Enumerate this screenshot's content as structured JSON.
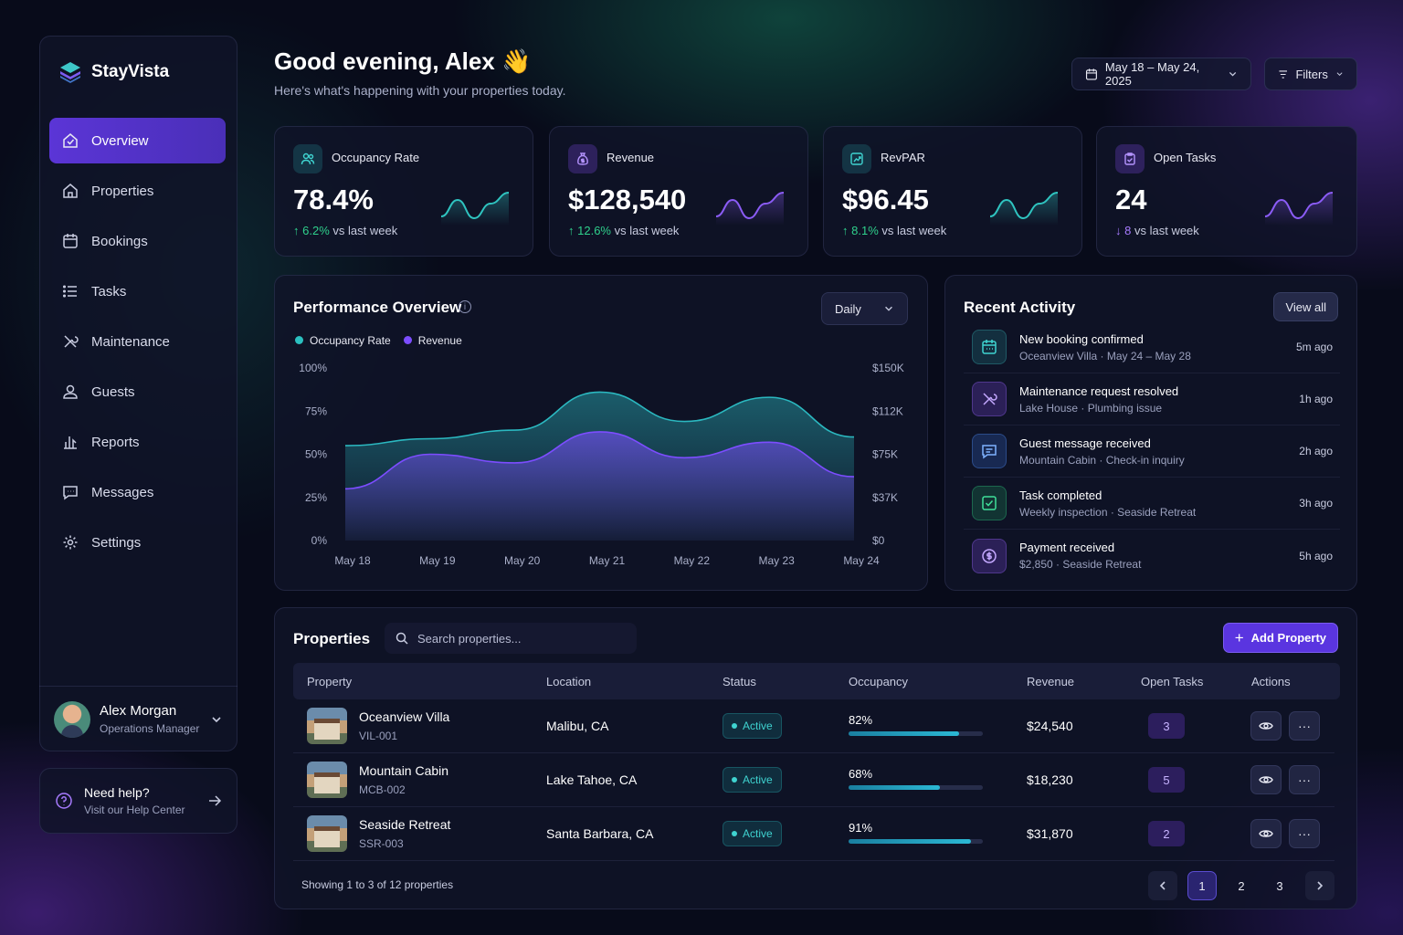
{
  "brand": {
    "name": "StayVista"
  },
  "sidebar": {
    "items": [
      {
        "label": "Overview",
        "icon": "home-check-icon",
        "active": true
      },
      {
        "label": "Properties",
        "icon": "house-icon"
      },
      {
        "label": "Bookings",
        "icon": "calendar-icon"
      },
      {
        "label": "Tasks",
        "icon": "list-icon"
      },
      {
        "label": "Maintenance",
        "icon": "tools-icon"
      },
      {
        "label": "Guests",
        "icon": "user-icon"
      },
      {
        "label": "Reports",
        "icon": "chart-icon"
      },
      {
        "label": "Messages",
        "icon": "message-icon"
      },
      {
        "label": "Settings",
        "icon": "gear-icon"
      }
    ]
  },
  "user": {
    "name": "Alex Morgan",
    "role": "Operations Manager"
  },
  "help": {
    "title": "Need help?",
    "subtitle": "Visit our Help Center"
  },
  "header": {
    "greeting": "Good evening, Alex 👋",
    "subtitle": "Here's what's happening with your properties today.",
    "date_range": "May 18 – May 24, 2025",
    "filters_label": "Filters"
  },
  "kpis": [
    {
      "label": "Occupancy Rate",
      "value": "78.4%",
      "delta": "6.2%",
      "direction": "up",
      "suffix": "vs last week",
      "color": "#2fc4c0"
    },
    {
      "label": "Revenue",
      "value": "$128,540",
      "delta": "12.6%",
      "direction": "up",
      "suffix": "vs last week",
      "color": "#8b5cf6"
    },
    {
      "label": "RevPAR",
      "value": "$96.45",
      "delta": "8.1%",
      "direction": "up",
      "suffix": "vs last week",
      "color": "#2fc4c0"
    },
    {
      "label": "Open Tasks",
      "value": "24",
      "delta": "8",
      "direction": "down",
      "suffix": "vs last week",
      "color": "#8b5cf6"
    }
  ],
  "performance": {
    "title": "Performance Overview",
    "period": "Daily",
    "chart_data": {
      "type": "area",
      "x": [
        "May 18",
        "May 19",
        "May 20",
        "May 21",
        "May 22",
        "May 23",
        "May 24"
      ],
      "y_left_ticks": [
        "100%",
        "75%",
        "50%",
        "25%",
        "0%"
      ],
      "y_right_ticks": [
        "$150K",
        "$112K",
        "$75K",
        "$37K",
        "$0"
      ],
      "ylim_left": [
        0,
        100
      ],
      "series": [
        {
          "name": "Occupancy Rate",
          "axis": "left",
          "color": "#2bb8c0",
          "values": [
            55,
            59,
            64,
            86,
            69,
            83,
            60
          ]
        },
        {
          "name": "Revenue",
          "axis": "left",
          "color": "#7c4dff",
          "values": [
            30,
            50,
            45,
            63,
            48,
            57,
            37
          ]
        }
      ]
    }
  },
  "activity": {
    "title": "Recent Activity",
    "view_all": "View all",
    "items": [
      {
        "title": "New booking confirmed",
        "sub": "Oceanview Villa · May 24 – May 28",
        "time": "5m ago",
        "icon": "calendar-icon",
        "color": "#2fc4c0"
      },
      {
        "title": "Maintenance request resolved",
        "sub": "Lake House · Plumbing issue",
        "time": "1h ago",
        "icon": "tools-icon",
        "color": "#9b6bff"
      },
      {
        "title": "Guest message received",
        "sub": "Mountain Cabin · Check-in inquiry",
        "time": "2h ago",
        "icon": "message-icon",
        "color": "#4a9bff"
      },
      {
        "title": "Task completed",
        "sub": "Weekly inspection · Seaside Retreat",
        "time": "3h ago",
        "icon": "check-icon",
        "color": "#2fd08c"
      },
      {
        "title": "Payment received",
        "sub": "$2,850 · Seaside Retreat",
        "time": "5h ago",
        "icon": "dollar-icon",
        "color": "#9b6bff"
      }
    ]
  },
  "properties": {
    "title": "Properties",
    "search_placeholder": "Search properties...",
    "add_label": "Add Property",
    "columns": [
      "Property",
      "Location",
      "Status",
      "Occupancy",
      "Revenue",
      "Open Tasks",
      "Actions"
    ],
    "rows": [
      {
        "name": "Oceanview Villa",
        "code": "VIL-001",
        "location": "Malibu, CA",
        "status": "Active",
        "occupancy": "82%",
        "occ_value": 82,
        "revenue": "$24,540",
        "tasks": "3"
      },
      {
        "name": "Mountain Cabin",
        "code": "MCB-002",
        "location": "Lake Tahoe, CA",
        "status": "Active",
        "occupancy": "68%",
        "occ_value": 68,
        "revenue": "$18,230",
        "tasks": "5"
      },
      {
        "name": "Seaside Retreat",
        "code": "SSR-003",
        "location": "Santa Barbara, CA",
        "status": "Active",
        "occupancy": "91%",
        "occ_value": 91,
        "revenue": "$31,870",
        "tasks": "2"
      }
    ],
    "showing": "Showing 1 to 3 of 12 properties",
    "pages": [
      "1",
      "2",
      "3"
    ],
    "current_page": "1"
  }
}
